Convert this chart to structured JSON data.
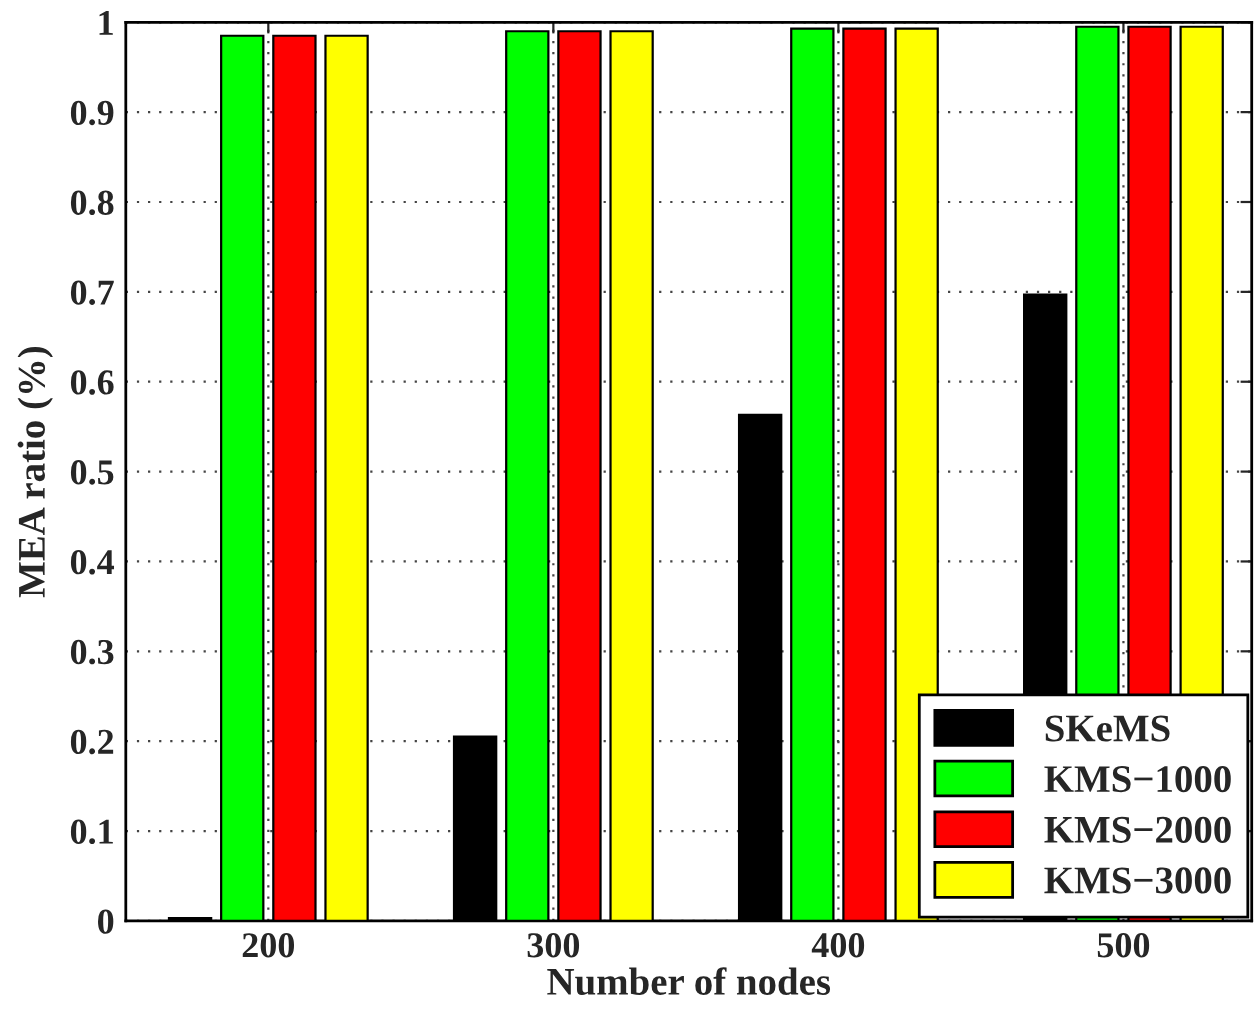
{
  "chart_data": {
    "type": "bar",
    "xlabel": "Number of nodes",
    "ylabel": "MEA ratio (%)",
    "categories": [
      "200",
      "300",
      "400",
      "500"
    ],
    "series": [
      {
        "name": "SKeMS",
        "color": "#000000",
        "values": [
          0.003,
          0.205,
          0.563,
          0.697
        ]
      },
      {
        "name": "KMS−1000",
        "color": "#00ff00",
        "values": [
          0.985,
          0.99,
          0.993,
          0.995
        ]
      },
      {
        "name": "KMS−2000",
        "color": "#ff0000",
        "values": [
          0.985,
          0.99,
          0.993,
          0.995
        ]
      },
      {
        "name": "KMS−3000",
        "color": "#ffff00",
        "values": [
          0.985,
          0.99,
          0.993,
          0.995
        ]
      }
    ],
    "ylim": [
      0,
      1
    ],
    "yticks": [
      0,
      0.1,
      0.2,
      0.3,
      0.4,
      0.5,
      0.6,
      0.7,
      0.8,
      0.9,
      1
    ],
    "grid": true,
    "legend": "bottom right"
  }
}
